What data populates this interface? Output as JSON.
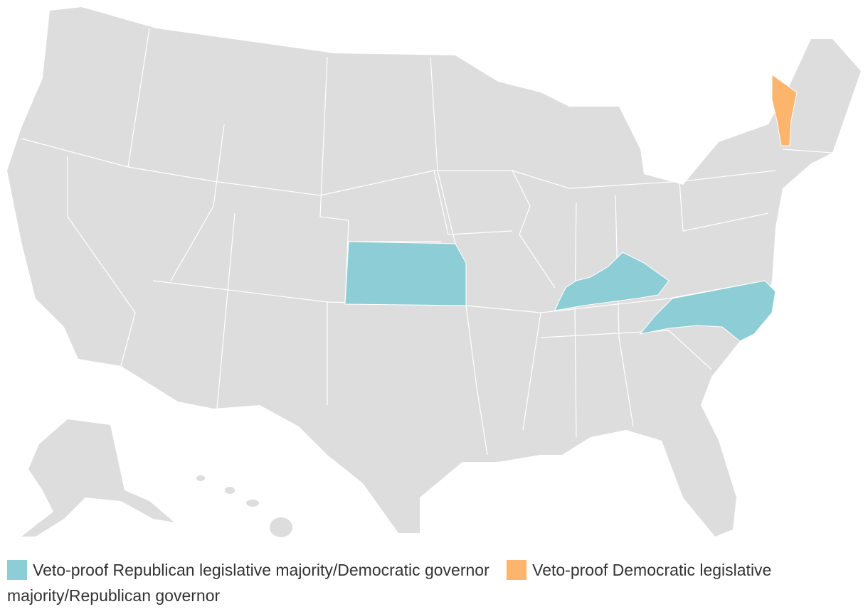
{
  "legend": [
    {
      "label": "Veto-proof Republican legislative majority/Democratic governor",
      "color": "#8ccdd6"
    },
    {
      "label": "Veto-proof Democratic legislative majority/Republican governor",
      "color": "#fdb56e"
    }
  ],
  "base_color": "#dddddd"
}
